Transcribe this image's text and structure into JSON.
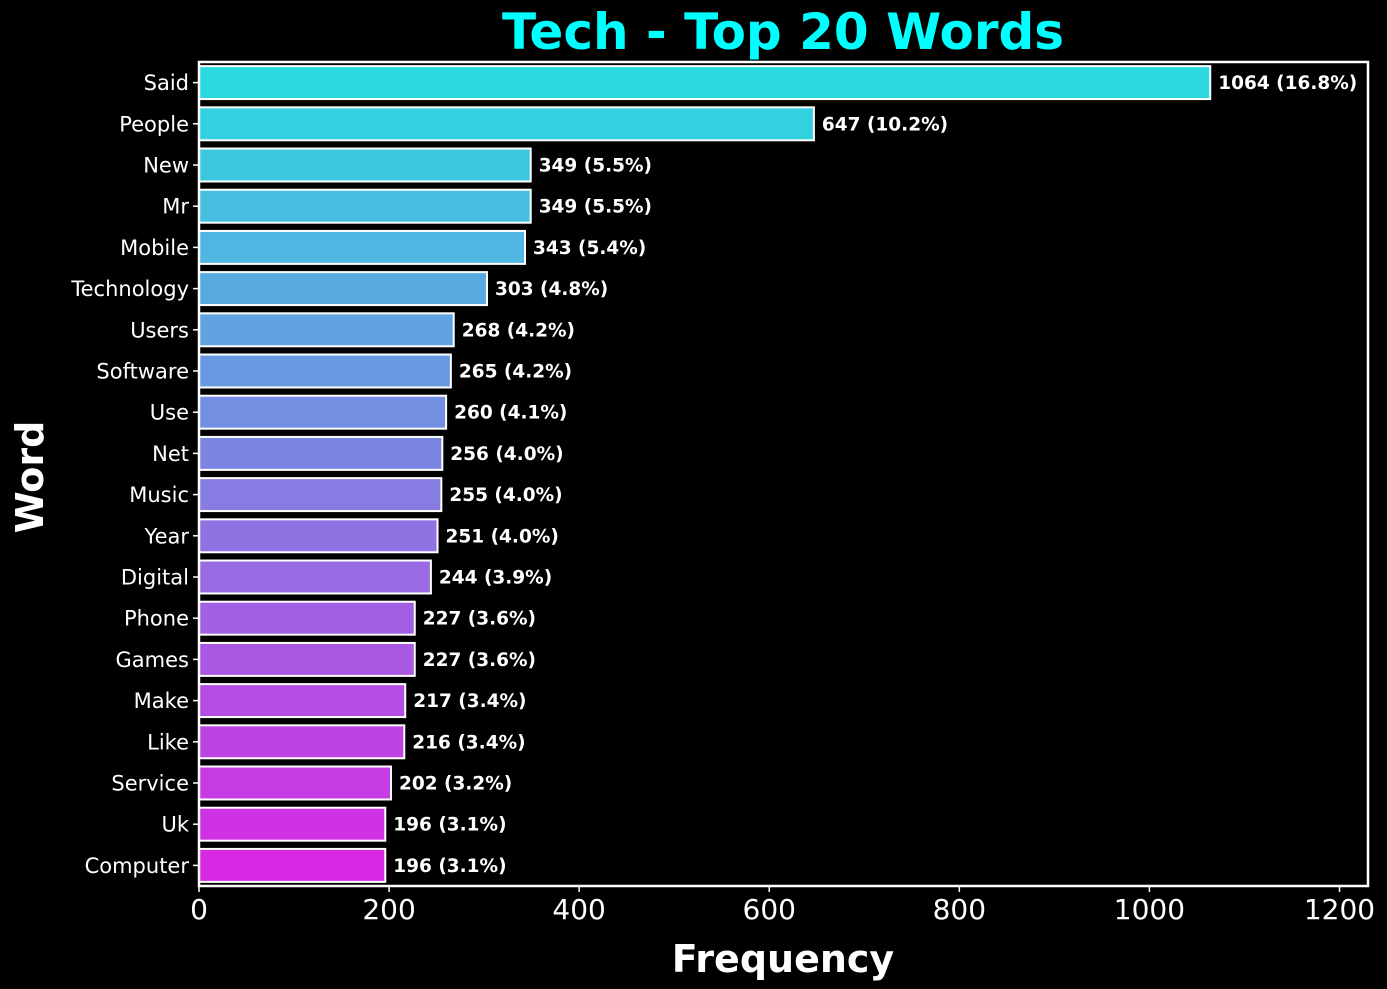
{
  "chart_data": {
    "type": "bar",
    "orientation": "horizontal",
    "title": "Tech - Top 20 Words",
    "xlabel": "Frequency",
    "ylabel": "Word",
    "xlim": [
      0,
      1230
    ],
    "xticks": [
      0,
      200,
      400,
      600,
      800,
      1000,
      1200
    ],
    "grid": false,
    "categories": [
      "Said",
      "People",
      "New",
      "Mr",
      "Mobile",
      "Technology",
      "Users",
      "Software",
      "Use",
      "Net",
      "Music",
      "Year",
      "Digital",
      "Phone",
      "Games",
      "Make",
      "Like",
      "Service",
      "Uk",
      "Computer"
    ],
    "values": [
      1064,
      647,
      349,
      349,
      343,
      303,
      268,
      265,
      260,
      256,
      255,
      251,
      244,
      227,
      227,
      217,
      216,
      202,
      196,
      196
    ],
    "data_labels": [
      "1064 (16.8%)",
      "647 (10.2%)",
      "349 (5.5%)",
      "349 (5.5%)",
      "343 (5.4%)",
      "303 (4.8%)",
      "268 (4.2%)",
      "265 (4.2%)",
      "260 (4.1%)",
      "256 (4.0%)",
      "255 (4.0%)",
      "251 (4.0%)",
      "244 (3.9%)",
      "227 (3.6%)",
      "227 (3.6%)",
      "217 (3.4%)",
      "216 (3.4%)",
      "202 (3.2%)",
      "196 (3.1%)",
      "196 (3.1%)"
    ],
    "colormap": "cool",
    "colors": {
      "background": "#000000",
      "title": "#00ffff",
      "text": "#ffffff",
      "bar_edge": "#ffffff",
      "gradient_start": "#2adae0",
      "gradient_end": "#d828e4"
    }
  }
}
